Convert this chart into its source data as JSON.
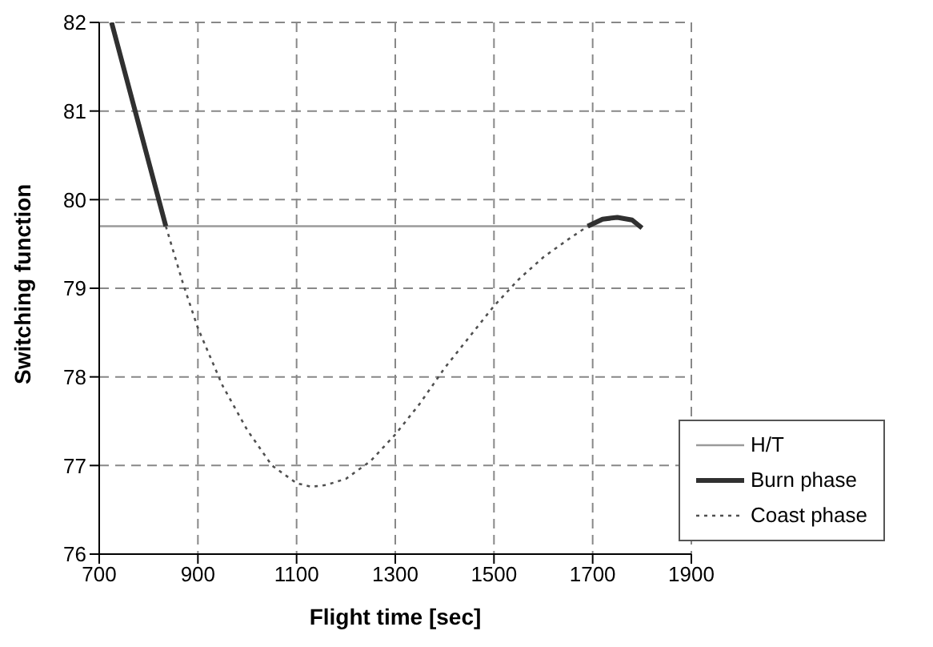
{
  "chart_data": {
    "type": "line",
    "xlabel": "Flight time [sec]",
    "ylabel": "Switching function",
    "xlim": [
      700,
      1900
    ],
    "xticks": [
      700,
      900,
      1100,
      1300,
      1500,
      1700,
      1900
    ],
    "ylim": [
      76,
      82
    ],
    "yticks": [
      76,
      77,
      78,
      79,
      80,
      81,
      82
    ],
    "grid": true,
    "legend": "bottom right",
    "marker": "none",
    "series": [
      {
        "name": "H/T",
        "color": "#9a9a9a",
        "line_style": "solid",
        "x": [
          700,
          1800
        ],
        "values": [
          79.7,
          79.7
        ]
      },
      {
        "name": "Burn phase",
        "color": "#303030",
        "line_style": "solid",
        "x": [
          725,
          780,
          835,
          1200,
          1690,
          1720,
          1750,
          1780,
          1800
        ],
        "values": [
          82,
          80.85,
          79.7,
          null,
          79.7,
          79.78,
          79.8,
          79.77,
          79.68
        ]
      },
      {
        "name": "Coast phase",
        "color": "#505050",
        "line_style": "dotted",
        "x": [
          835,
          870,
          900,
          950,
          1000,
          1050,
          1100,
          1130,
          1160,
          1200,
          1250,
          1300,
          1350,
          1400,
          1450,
          1500,
          1550,
          1600,
          1650,
          1690
        ],
        "values": [
          79.7,
          79.05,
          78.55,
          77.9,
          77.4,
          77.0,
          76.8,
          76.76,
          76.78,
          76.85,
          77.05,
          77.35,
          77.7,
          78.1,
          78.45,
          78.8,
          79.1,
          79.35,
          79.55,
          79.7
        ]
      }
    ]
  }
}
